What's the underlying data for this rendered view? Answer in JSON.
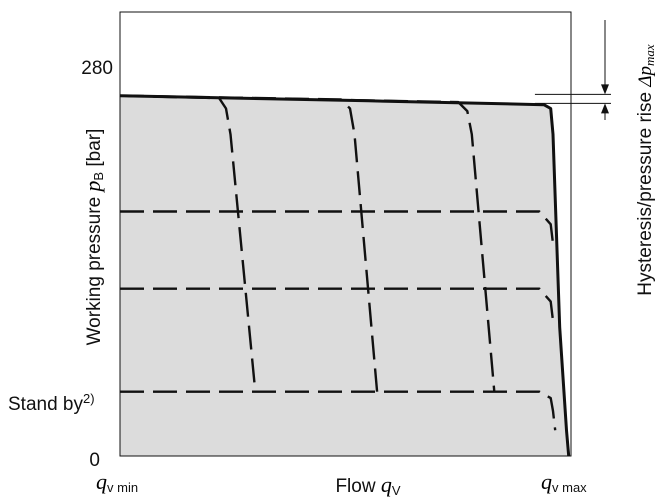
{
  "chart_data": {
    "type": "line",
    "title": "",
    "xlabel": {
      "text": "Flow ",
      "symbol": "q",
      "sub": "V"
    },
    "ylabel": {
      "text": "Working pressure ",
      "symbol": "p",
      "sub": "B",
      "unit": " [bar]"
    },
    "right_label": {
      "text": "Hysteresis/pressure rise ",
      "symbol": "Δp",
      "sub": "max"
    },
    "x_ticks": [
      {
        "symbol": "q",
        "sub": "v min",
        "at": "min"
      },
      {
        "symbol": "q",
        "sub": "v max",
        "at": "max"
      }
    ],
    "y_ticks": [
      {
        "label": "280",
        "value": 280
      },
      {
        "label": "Stand by",
        "sup": "2)",
        "value": 50
      },
      {
        "label": "0",
        "value": 0
      }
    ],
    "xlim": [
      0,
      1
    ],
    "ylim": [
      0,
      345
    ],
    "grid": false,
    "fill_color": "#dcdcdc",
    "line_color": "#111111",
    "series": [
      {
        "style": "solid",
        "x": [
          0,
          0.55,
          0.94,
          0.955,
          0.96,
          0.975,
          0.99,
          0.995
        ],
        "y": [
          280,
          276,
          273,
          270,
          250,
          100,
          20,
          0
        ]
      },
      {
        "style": "dashed",
        "x": [
          0,
          0.22,
          0.235,
          0.245,
          0.3
        ],
        "y": [
          280,
          278,
          270,
          250,
          50
        ]
      },
      {
        "style": "dashed",
        "x": [
          0,
          0.49,
          0.51,
          0.52,
          0.57
        ],
        "y": [
          280,
          277,
          270,
          250,
          50
        ]
      },
      {
        "style": "dashed",
        "x": [
          0,
          0.75,
          0.77,
          0.78,
          0.83
        ],
        "y": [
          280,
          275,
          268,
          250,
          50
        ]
      },
      {
        "style": "dashed",
        "x": [
          0,
          0.93,
          0.955,
          0.96
        ],
        "y": [
          190,
          190,
          180,
          165
        ]
      },
      {
        "style": "dashed",
        "x": [
          0,
          0.93,
          0.955,
          0.96
        ],
        "y": [
          130,
          130,
          120,
          105
        ]
      },
      {
        "style": "dashed",
        "x": [
          0,
          0.93,
          0.955,
          0.96,
          0.965
        ],
        "y": [
          50,
          50,
          45,
          35,
          20
        ]
      }
    ],
    "annotation": {
      "type": "hysteresis-band",
      "y_low": 274,
      "y_high": 281
    }
  }
}
